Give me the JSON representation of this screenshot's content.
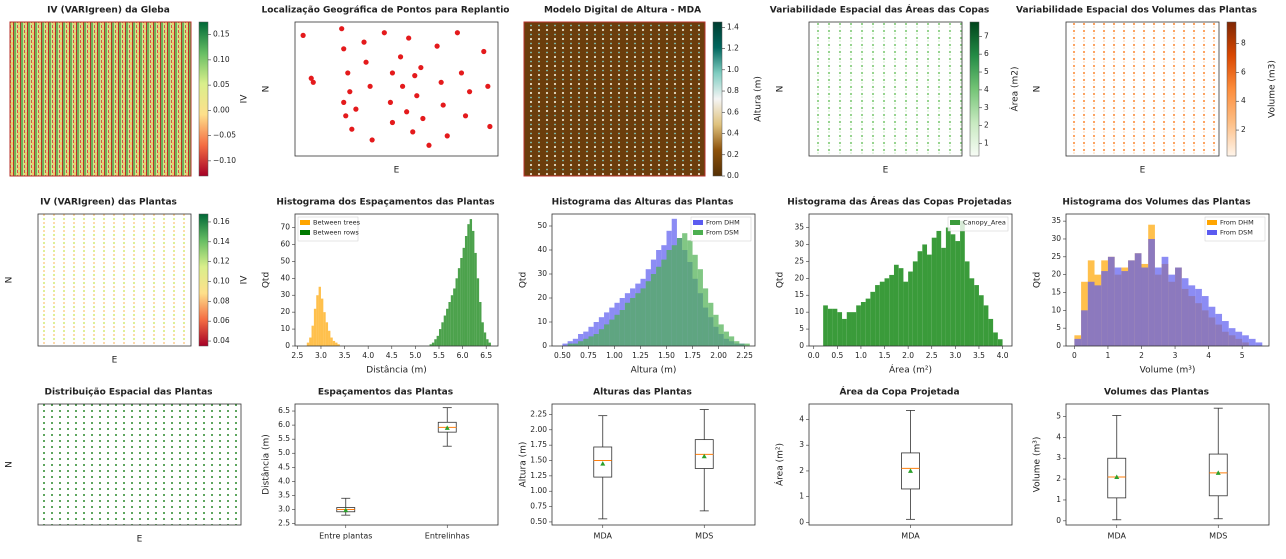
{
  "chart_data": [
    {
      "type": "heatmap",
      "title": "IV (VARIgreen) da Gleba",
      "colorbar": {
        "label": "IV",
        "lim": [
          -0.13,
          0.175
        ],
        "colors": [
          "#a50026",
          "#f46d43",
          "#fee08b",
          "#d9ef8b",
          "#66bd63",
          "#006837"
        ],
        "ticks": [
          {
            "value": 0.15,
            "label": "0.15"
          },
          {
            "value": 0.1,
            "label": "0.10"
          },
          {
            "value": 0.05,
            "label": "0.05"
          },
          {
            "value": 0,
            "label": "0.00"
          },
          {
            "value": -0.05,
            "label": "−0.05"
          },
          {
            "value": -0.1,
            "label": "−0.10"
          }
        ]
      }
    },
    {
      "type": "scatter",
      "title": "Localização Geográfica de Pontos para Replantio",
      "x_label": "E",
      "y_label": "N",
      "color": "#e41a1c",
      "xlim": [
        0,
        100
      ],
      "ylim": [
        0,
        100
      ],
      "x": [
        4,
        8,
        9,
        23,
        24,
        24,
        25,
        26,
        27,
        28,
        30,
        34,
        35,
        37,
        38,
        44,
        47,
        48,
        48,
        52,
        53,
        55,
        56,
        58,
        59,
        60,
        62,
        63,
        66,
        70,
        72,
        73,
        75,
        80,
        82,
        84,
        86,
        93,
        95,
        96
      ],
      "y": [
        90,
        58,
        55,
        95,
        80,
        40,
        30,
        62,
        48,
        20,
        35,
        85,
        70,
        52,
        12,
        92,
        40,
        62,
        25,
        74,
        52,
        33,
        88,
        18,
        60,
        45,
        66,
        28,
        8,
        82,
        55,
        38,
        15,
        92,
        62,
        30,
        48,
        78,
        52,
        22
      ]
    },
    {
      "type": "heatmap",
      "title": "Modelo  Digital de Altura - MDA",
      "colorbar": {
        "label": "Altura (m)",
        "lim": [
          0,
          1.45
        ],
        "colors": [
          "#543005",
          "#8c510a",
          "#dfc27d",
          "#f5f5f5",
          "#80cdc1",
          "#01665e",
          "#003c30"
        ],
        "ticks": [
          {
            "value": 0,
            "label": "0.0"
          },
          0.2,
          0.4,
          0.6,
          0.8,
          {
            "value": 1,
            "label": "1.0"
          },
          1.2,
          1.4
        ]
      }
    },
    {
      "type": "map",
      "title": "Variabilidade  Espacial das Áreas das Copas",
      "x_label": "E",
      "y_label": "N",
      "colorbar": {
        "label": "Área (m2)",
        "lim": [
          0.3,
          7.8
        ],
        "colors": [
          "#f7fcf5",
          "#c7e9c0",
          "#74c476",
          "#238b45",
          "#00441b"
        ],
        "ticks": [
          1,
          2,
          3,
          4,
          5,
          6,
          7
        ]
      }
    },
    {
      "type": "map",
      "title": "Variabilidade  Espacial dos Volumes das Plantas",
      "x_label": "E",
      "y_label": "N",
      "colorbar": {
        "label": "Volume (m3)",
        "lim": [
          0.2,
          9.5
        ],
        "colors": [
          "#fff5eb",
          "#fdbe85",
          "#fd8d3c",
          "#d94701",
          "#7f2704"
        ],
        "ticks": [
          2,
          4,
          6,
          8
        ]
      }
    },
    {
      "type": "map",
      "title": "IV (VARIgreen) das Plantas",
      "x_label": "E",
      "y_label": "N",
      "colorbar": {
        "label": "IV",
        "lim": [
          0.035,
          0.168
        ],
        "colors": [
          "#a50026",
          "#f46d43",
          "#fee08b",
          "#d9ef8b",
          "#66bd63",
          "#006837"
        ],
        "ticks": [
          0.04,
          0.06,
          0.08,
          {
            "value": 0.1,
            "label": "0.10"
          },
          0.12,
          0.14,
          0.16
        ]
      }
    },
    {
      "type": "histogram",
      "title": "Histograma dos Espaçamentos das Plantas",
      "x_label": "Distância (m)",
      "y_label": "Qtd",
      "legend": "upper left",
      "xlim": [
        2.45,
        6.75
      ],
      "ylim": [
        0,
        78
      ],
      "xticks": [
        2.5,
        {
          "value": 3,
          "label": "3.0"
        },
        3.5,
        {
          "value": 4,
          "label": "4.0"
        },
        4.5,
        {
          "value": 5,
          "label": "5.0"
        },
        5.5,
        {
          "value": 6,
          "label": "6.0"
        },
        6.5
      ],
      "yticks": [
        0,
        10,
        20,
        30,
        40,
        50,
        60,
        70
      ],
      "series": [
        {
          "name": "Between trees",
          "color": "#ffa500",
          "bins": [
            2.7,
            2.75,
            2.8,
            2.85,
            2.9,
            2.95,
            3.0,
            3.05,
            3.1,
            3.15,
            3.2,
            3.25,
            3.3,
            3.35,
            3.4
          ],
          "values": [
            2,
            5,
            12,
            22,
            30,
            35,
            28,
            20,
            14,
            9,
            5,
            3,
            2,
            1
          ]
        },
        {
          "name": "Between rows",
          "color": "#007a00",
          "bins": [
            5.3,
            5.35,
            5.4,
            5.45,
            5.5,
            5.55,
            5.6,
            5.65,
            5.7,
            5.75,
            5.8,
            5.85,
            5.9,
            5.95,
            6.0,
            6.05,
            6.1,
            6.15,
            6.2,
            6.25,
            6.3,
            6.35,
            6.4,
            6.45,
            6.5,
            6.55,
            6.6
          ],
          "values": [
            1,
            2,
            4,
            6,
            10,
            14,
            18,
            22,
            26,
            30,
            34,
            40,
            46,
            52,
            58,
            65,
            72,
            75,
            68,
            55,
            40,
            26,
            14,
            8,
            4,
            2
          ]
        }
      ]
    },
    {
      "type": "histogram",
      "title": "Histograma das Alturas das Plantas",
      "x_label": "Altura (m)",
      "y_label": "Qtd",
      "legend": "upper right",
      "xlim": [
        0.4,
        2.35
      ],
      "ylim": [
        0,
        55
      ],
      "xticks": [
        {
          "value": 0.5,
          "label": "0.50"
        },
        0.75,
        {
          "value": 1,
          "label": "1.00"
        },
        1.25,
        {
          "value": 1.5,
          "label": "1.50"
        },
        1.75,
        {
          "value": 2,
          "label": "2.00"
        },
        2.25
      ],
      "yticks": [
        0,
        10,
        20,
        30,
        40,
        50
      ],
      "series": [
        {
          "name": "From DHM",
          "color": "#5b5bf0",
          "bins": [
            0.5,
            0.55,
            0.6,
            0.65,
            0.7,
            0.75,
            0.8,
            0.85,
            0.9,
            0.95,
            1.0,
            1.05,
            1.1,
            1.15,
            1.2,
            1.25,
            1.3,
            1.35,
            1.4,
            1.45,
            1.5,
            1.55,
            1.6,
            1.65,
            1.7,
            1.75,
            1.8,
            1.85,
            1.9,
            1.95,
            2.0,
            2.05,
            2.1,
            2.15,
            2.2,
            2.25,
            2.3
          ],
          "values": [
            1,
            2,
            3,
            5,
            6,
            8,
            10,
            12,
            14,
            16,
            18,
            20,
            22,
            24,
            26,
            28,
            32,
            36,
            40,
            42,
            48,
            53,
            45,
            40,
            35,
            28,
            22,
            16,
            12,
            8,
            5,
            3,
            2,
            1,
            1,
            0
          ]
        },
        {
          "name": "From DSM",
          "color": "#4caf50",
          "bins": [
            0.5,
            0.55,
            0.6,
            0.65,
            0.7,
            0.75,
            0.8,
            0.85,
            0.9,
            0.95,
            1.0,
            1.05,
            1.1,
            1.15,
            1.2,
            1.25,
            1.3,
            1.35,
            1.4,
            1.45,
            1.5,
            1.55,
            1.6,
            1.65,
            1.7,
            1.75,
            1.8,
            1.85,
            1.9,
            1.95,
            2.0,
            2.05,
            2.1,
            2.15,
            2.2,
            2.25,
            2.3
          ],
          "values": [
            0,
            1,
            1,
            2,
            3,
            4,
            5,
            7,
            9,
            11,
            13,
            15,
            18,
            20,
            22,
            24,
            27,
            30,
            33,
            36,
            40,
            42,
            45,
            47,
            44,
            38,
            32,
            24,
            18,
            13,
            9,
            6,
            4,
            2,
            1,
            1
          ]
        }
      ]
    },
    {
      "type": "histogram",
      "title": "Histograma das Áreas das Copas Projetadas",
      "x_label": "Área (m²)",
      "y_label": "Qtd",
      "legend": "upper right",
      "xlim": [
        -0.1,
        4.2
      ],
      "ylim": [
        0,
        39
      ],
      "xticks": [
        {
          "value": 0,
          "label": "0.0"
        },
        0.5,
        {
          "value": 1,
          "label": "1.0"
        },
        1.5,
        {
          "value": 2,
          "label": "2.0"
        },
        2.5,
        {
          "value": 3,
          "label": "3.0"
        },
        3.5,
        {
          "value": 4,
          "label": "4.0"
        }
      ],
      "yticks": [
        0,
        5,
        10,
        15,
        20,
        25,
        30,
        35
      ],
      "series": [
        {
          "name": "Canopy_Area",
          "color": "#3a9b3a",
          "bins": [
            0.2,
            0.3,
            0.4,
            0.5,
            0.6,
            0.7,
            0.8,
            0.9,
            1.0,
            1.1,
            1.2,
            1.3,
            1.4,
            1.5,
            1.6,
            1.7,
            1.8,
            1.9,
            2.0,
            2.1,
            2.2,
            2.3,
            2.4,
            2.5,
            2.6,
            2.7,
            2.8,
            2.9,
            3.0,
            3.1,
            3.2,
            3.3,
            3.4,
            3.5,
            3.6,
            3.7,
            3.8,
            3.9,
            4.0
          ],
          "values": [
            12,
            11,
            11,
            10,
            8,
            10,
            10,
            12,
            13,
            14,
            16,
            18,
            19,
            20,
            21,
            24,
            23,
            19,
            22,
            25,
            28,
            30,
            27,
            32,
            34,
            29,
            35,
            33,
            31,
            37,
            25,
            20,
            18,
            15,
            12,
            8,
            4,
            2
          ]
        }
      ]
    },
    {
      "type": "histogram",
      "title": "Histograma dos Volumes das Plantas",
      "x_label": "Volume (m³)",
      "y_label": "Qtd",
      "legend": "upper right",
      "xlim": [
        -0.25,
        5.8
      ],
      "ylim": [
        0,
        37
      ],
      "xticks": [
        0,
        1,
        2,
        3,
        4,
        5
      ],
      "yticks": [
        0,
        5,
        10,
        15,
        20,
        25,
        30,
        35
      ],
      "series": [
        {
          "name": "From DHM",
          "color": "#ffa500",
          "bins": [
            0,
            0.2,
            0.4,
            0.6,
            0.8,
            1.0,
            1.2,
            1.4,
            1.6,
            1.8,
            2.0,
            2.2,
            2.4,
            2.6,
            2.8,
            3.0,
            3.2,
            3.4,
            3.6,
            3.8,
            4.0,
            4.2,
            4.4,
            4.6,
            4.8,
            5.0,
            5.2,
            5.4,
            5.6
          ],
          "values": [
            3,
            18,
            24,
            20,
            24,
            25,
            20,
            22,
            24,
            26,
            23,
            34,
            20,
            23,
            18,
            22,
            16,
            14,
            12,
            10,
            8,
            6,
            4,
            3,
            2,
            1,
            0,
            0
          ]
        },
        {
          "name": "From DSM",
          "color": "#5b5bf0",
          "bins": [
            0,
            0.2,
            0.4,
            0.6,
            0.8,
            1.0,
            1.2,
            1.4,
            1.6,
            1.8,
            2.0,
            2.2,
            2.4,
            2.6,
            2.8,
            3.0,
            3.2,
            3.4,
            3.6,
            3.8,
            4.0,
            4.2,
            4.4,
            4.6,
            4.8,
            5.0,
            5.2,
            5.4,
            5.6
          ],
          "values": [
            2,
            10,
            18,
            17,
            21,
            25,
            22,
            21,
            24,
            26,
            22,
            30,
            22,
            25,
            20,
            22,
            19,
            17,
            16,
            14,
            11,
            9,
            7,
            5,
            4,
            3,
            2,
            1
          ]
        }
      ]
    },
    {
      "type": "map",
      "title": "Distribuição Espacial das Plantas",
      "x_label": "E",
      "y_label": "N"
    },
    {
      "type": "box",
      "title": "Espaçamentos das Plantas",
      "y_label": "Distância (m)",
      "ylim": [
        2.45,
        6.75
      ],
      "yticks": [
        2.5,
        {
          "value": 3,
          "label": "3.0"
        },
        3.5,
        {
          "value": 4,
          "label": "4.0"
        },
        4.5,
        {
          "value": 5,
          "label": "5.0"
        },
        5.5,
        {
          "value": 6,
          "label": "6.0"
        },
        6.5
      ],
      "boxes": [
        {
          "label": "Entre plantas",
          "whislo": 2.8,
          "q1": 2.92,
          "med": 3.0,
          "q3": 3.07,
          "whishi": 3.4,
          "mean": 2.98
        },
        {
          "label": "Entrelinhas",
          "whislo": 5.25,
          "q1": 5.75,
          "med": 5.92,
          "q3": 6.1,
          "whishi": 6.62,
          "mean": 5.9
        }
      ]
    },
    {
      "type": "box",
      "title": "Alturas das Plantas",
      "y_label": "Altura (m)",
      "ylim": [
        0.45,
        2.42
      ],
      "yticks": [
        {
          "value": 0.5,
          "label": "0.50"
        },
        0.75,
        {
          "value": 1,
          "label": "1.00"
        },
        1.25,
        {
          "value": 1.5,
          "label": "1.50"
        },
        1.75,
        {
          "value": 2,
          "label": "2.00"
        },
        2.25
      ],
      "boxes": [
        {
          "label": "MDA",
          "whislo": 0.55,
          "q1": 1.23,
          "med": 1.5,
          "q3": 1.72,
          "whishi": 2.23,
          "mean": 1.45
        },
        {
          "label": "MDS",
          "whislo": 0.68,
          "q1": 1.37,
          "med": 1.6,
          "q3": 1.84,
          "whishi": 2.33,
          "mean": 1.57
        }
      ]
    },
    {
      "type": "box",
      "title": "Área da Copa Projetada",
      "y_label": "Área (m²)",
      "ylim": [
        -0.1,
        4.6
      ],
      "yticks": [
        0,
        1,
        2,
        3,
        4
      ],
      "boxes": [
        {
          "label": "MDA",
          "whislo": 0.12,
          "q1": 1.3,
          "med": 2.1,
          "q3": 2.7,
          "whishi": 4.35,
          "mean": 2.0
        }
      ]
    },
    {
      "type": "box",
      "title": "Volumes das Plantas",
      "y_label": "Volume (m³)",
      "ylim": [
        -0.2,
        5.6
      ],
      "yticks": [
        0,
        1,
        2,
        3,
        4,
        5
      ],
      "boxes": [
        {
          "label": "MDA",
          "whislo": 0.05,
          "q1": 1.1,
          "med": 2.1,
          "q3": 3.0,
          "whishi": 5.05,
          "mean": 2.1
        },
        {
          "label": "MDS",
          "whislo": 0.1,
          "q1": 1.2,
          "med": 2.3,
          "q3": 3.2,
          "whishi": 5.4,
          "mean": 2.3
        }
      ]
    }
  ]
}
